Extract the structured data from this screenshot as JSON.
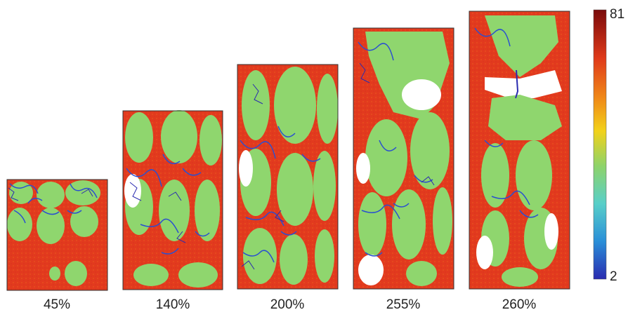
{
  "panels": [
    {
      "label": "45%"
    },
    {
      "label": "140%"
    },
    {
      "label": "200%"
    },
    {
      "label": "255%"
    },
    {
      "label": "260%"
    }
  ],
  "colorbar": {
    "max_label": "81",
    "min_label": "2",
    "colors": [
      "#7a0b0b",
      "#e03a1a",
      "#f08a18",
      "#f2d21a",
      "#8ed36a",
      "#58cfc9",
      "#2a8fd8",
      "#2a2bb0"
    ]
  },
  "colors": {
    "matrix": "#e23a1e",
    "filler": "#8fd66e",
    "network": "#2a4fd0",
    "cyan": "#5bd2c8",
    "void": "#ffffff",
    "frame": "#333333"
  }
}
